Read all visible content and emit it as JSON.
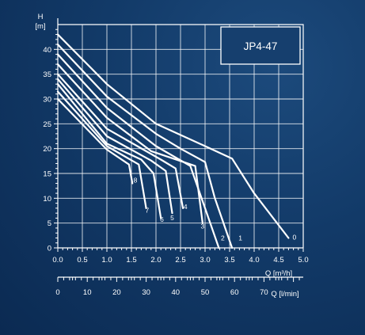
{
  "chart_data": {
    "type": "line",
    "title": "JP4-47",
    "ylabel_top": "H",
    "ylabel_unit": "[m]",
    "xlabel": "Q [m³/h]",
    "x2label": "Q [l/min]",
    "xlim": [
      0,
      5.0
    ],
    "ylim": [
      0,
      45
    ],
    "x2lim": [
      0,
      83.33
    ],
    "x_ticks": [
      "0.0",
      "0.5",
      "1.0",
      "1.5",
      "2.0",
      "2.5",
      "3.0",
      "3.5",
      "4.0",
      "4.5",
      "5.0"
    ],
    "y_ticks": [
      "0",
      "5",
      "10",
      "15",
      "20",
      "25",
      "30",
      "35",
      "40"
    ],
    "x2_ticks": [
      "0",
      "10",
      "20",
      "30",
      "40",
      "50",
      "60",
      "70"
    ],
    "grid": true,
    "series": [
      {
        "name": "0",
        "label_at": [
          4.82,
          1.7
        ],
        "points": [
          [
            0,
            43
          ],
          [
            1.0,
            33
          ],
          [
            2.0,
            25
          ],
          [
            3.0,
            20.5
          ],
          [
            3.55,
            18
          ],
          [
            4.0,
            11
          ],
          [
            4.7,
            2
          ]
        ]
      },
      {
        "name": "1",
        "label_at": [
          3.72,
          1.5
        ],
        "points": [
          [
            0,
            41
          ],
          [
            1.0,
            30.5
          ],
          [
            2.0,
            23
          ],
          [
            2.5,
            20
          ],
          [
            3.0,
            17.3
          ],
          [
            3.2,
            10
          ],
          [
            3.55,
            0
          ]
        ]
      },
      {
        "name": "2",
        "label_at": [
          3.36,
          1.5
        ],
        "points": [
          [
            0,
            39
          ],
          [
            1.0,
            28.2
          ],
          [
            2.0,
            20.5
          ],
          [
            2.7,
            16.5
          ],
          [
            3.0,
            8
          ],
          [
            3.28,
            0
          ]
        ]
      },
      {
        "name": "3",
        "label_at": [
          2.95,
          3.9
        ],
        "points": [
          [
            0,
            37
          ],
          [
            1.0,
            26.2
          ],
          [
            1.9,
            19.5
          ],
          [
            2.8,
            16.5
          ],
          [
            2.95,
            5
          ]
        ]
      },
      {
        "name": "4",
        "label_at": [
          2.6,
          7.8
        ],
        "points": [
          [
            0,
            35
          ],
          [
            1.0,
            24
          ],
          [
            2.1,
            17.8
          ],
          [
            2.4,
            16
          ],
          [
            2.55,
            8
          ]
        ]
      },
      {
        "name": "5",
        "label_at": [
          2.33,
          5.6
        ],
        "points": [
          [
            0,
            34
          ],
          [
            1.0,
            22.5
          ],
          [
            1.9,
            17.6
          ],
          [
            2.2,
            15.5
          ],
          [
            2.33,
            7
          ]
        ]
      },
      {
        "name": "6",
        "label_at": [
          2.12,
          5.3
        ],
        "points": [
          [
            0,
            33
          ],
          [
            1.0,
            21
          ],
          [
            1.7,
            17.8
          ],
          [
            1.95,
            15
          ],
          [
            2.1,
            6
          ]
        ]
      },
      {
        "name": "7",
        "label_at": [
          1.82,
          7.1
        ],
        "points": [
          [
            0,
            31.5
          ],
          [
            1.0,
            20.5
          ],
          [
            1.65,
            16.8
          ],
          [
            1.8,
            8
          ]
        ]
      },
      {
        "name": "8",
        "label_at": [
          1.58,
          13.2
        ],
        "points": [
          [
            0,
            30
          ],
          [
            1.0,
            19.8
          ],
          [
            1.45,
            16.8
          ],
          [
            1.52,
            13
          ]
        ]
      }
    ]
  }
}
